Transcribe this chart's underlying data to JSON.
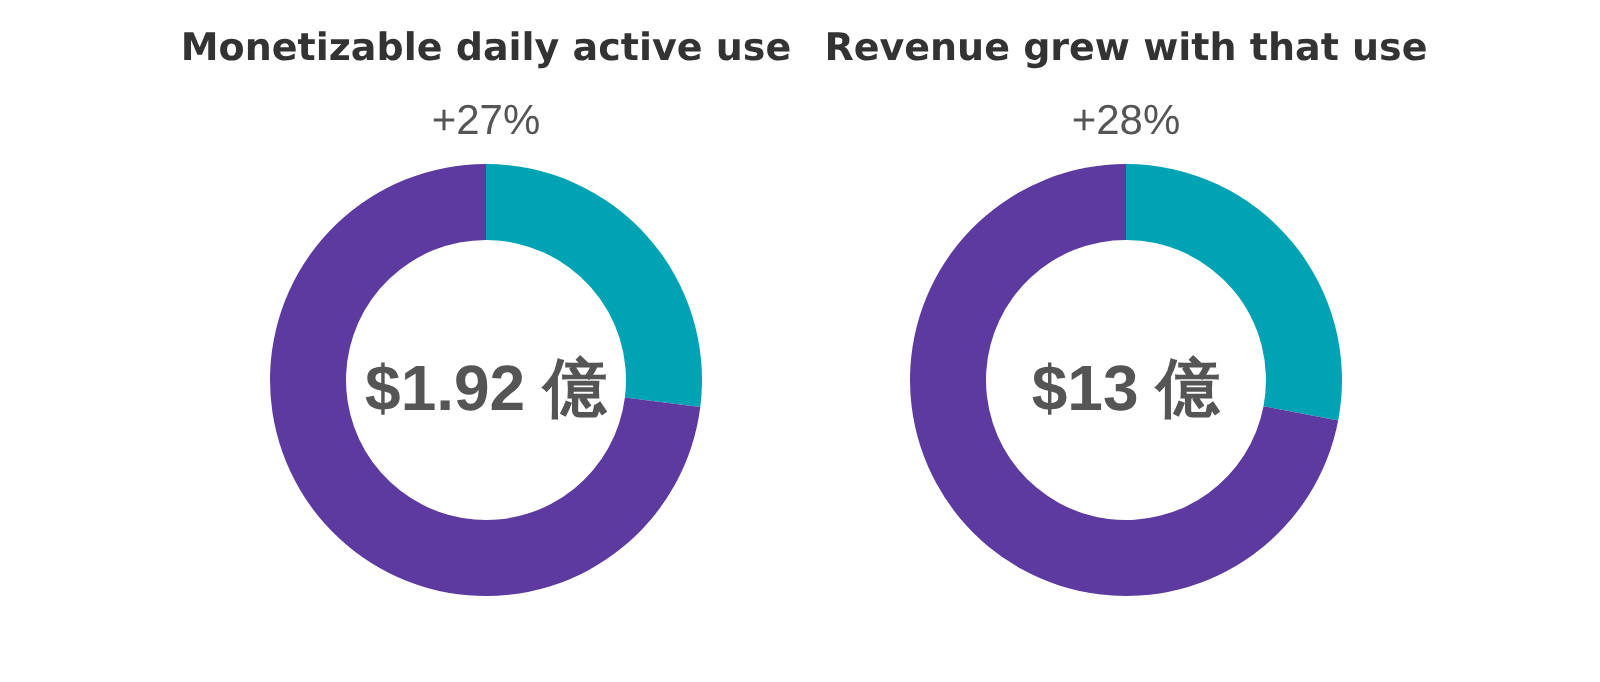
{
  "chart_data": [
    {
      "type": "donut",
      "title": "Monetizable daily active use",
      "annotations": [
        "+27%",
        "$1.92 億"
      ],
      "categories": [
        null,
        null
      ],
      "values": [
        27,
        73
      ],
      "colors": [
        "#00a3b4",
        "#5c3a9f"
      ]
    },
    {
      "type": "donut",
      "title": "Revenue grew with that use",
      "annotations": [
        "+28%",
        "$13 億"
      ],
      "categories": [
        null,
        null
      ],
      "values": [
        28,
        72
      ],
      "colors": [
        "#00a3b4",
        "#5c3a9f"
      ]
    }
  ]
}
